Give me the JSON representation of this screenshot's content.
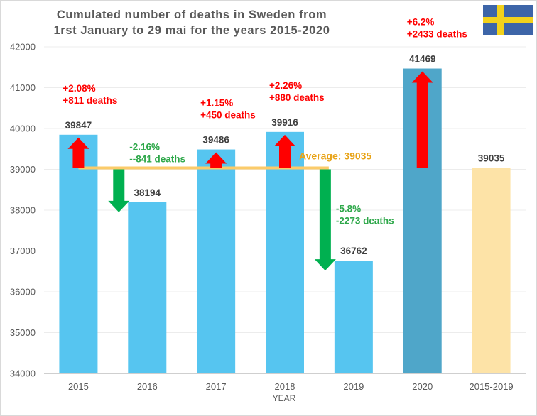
{
  "chart_data": {
    "type": "bar",
    "title": [
      "Cumulated number of deaths in Sweden from",
      "1rst January to 29 mai for the years 2015-2020"
    ],
    "xlabel": "YEAR",
    "ylabel": "",
    "ylim": [
      34000,
      42000
    ],
    "yticks": [
      34000,
      35000,
      36000,
      37000,
      38000,
      39000,
      40000,
      41000,
      42000
    ],
    "grid": true,
    "categories": [
      "2015",
      "2016",
      "2017",
      "2018",
      "2019",
      "2020",
      "2015-2019"
    ],
    "values": [
      39847,
      38194,
      39486,
      39916,
      36762,
      41469,
      39035
    ],
    "value_labels": [
      "39847",
      "38194",
      "39486",
      "39916",
      "36762",
      "41469",
      "39035"
    ],
    "bar_colors": [
      "#56c5f0",
      "#56c5f0",
      "#56c5f0",
      "#56c5f0",
      "#56c5f0",
      "#4fa6c9",
      "#fde3a7"
    ],
    "average": {
      "value": 39035,
      "label": "Average: 39035",
      "color": "#fbcb6a"
    },
    "annotations": [
      {
        "category": "2015",
        "direction": "up",
        "color": "#ff0000",
        "lines": [
          "+2.08%",
          "+811 deaths"
        ]
      },
      {
        "category": "2016",
        "direction": "down",
        "color": "#00b050",
        "lines": [
          "-2.16%",
          "--841 deaths"
        ]
      },
      {
        "category": "2017",
        "direction": "up",
        "color": "#ff0000",
        "lines": [
          "+1.15%",
          "+450 deaths"
        ]
      },
      {
        "category": "2018",
        "direction": "up",
        "color": "#ff0000",
        "lines": [
          "+2.26%",
          "+880 deaths"
        ]
      },
      {
        "category": "2019",
        "direction": "down",
        "color": "#00b050",
        "lines": [
          "-5.8%",
          "-2273 deaths"
        ]
      },
      {
        "category": "2020",
        "direction": "up",
        "color": "#ff0000",
        "lines": [
          "+6.2%",
          "+2433 deaths"
        ]
      }
    ],
    "legend": null
  },
  "flag": {
    "name": "sweden-flag",
    "blue": "#3d65a8",
    "yellow": "#f2d21c"
  }
}
